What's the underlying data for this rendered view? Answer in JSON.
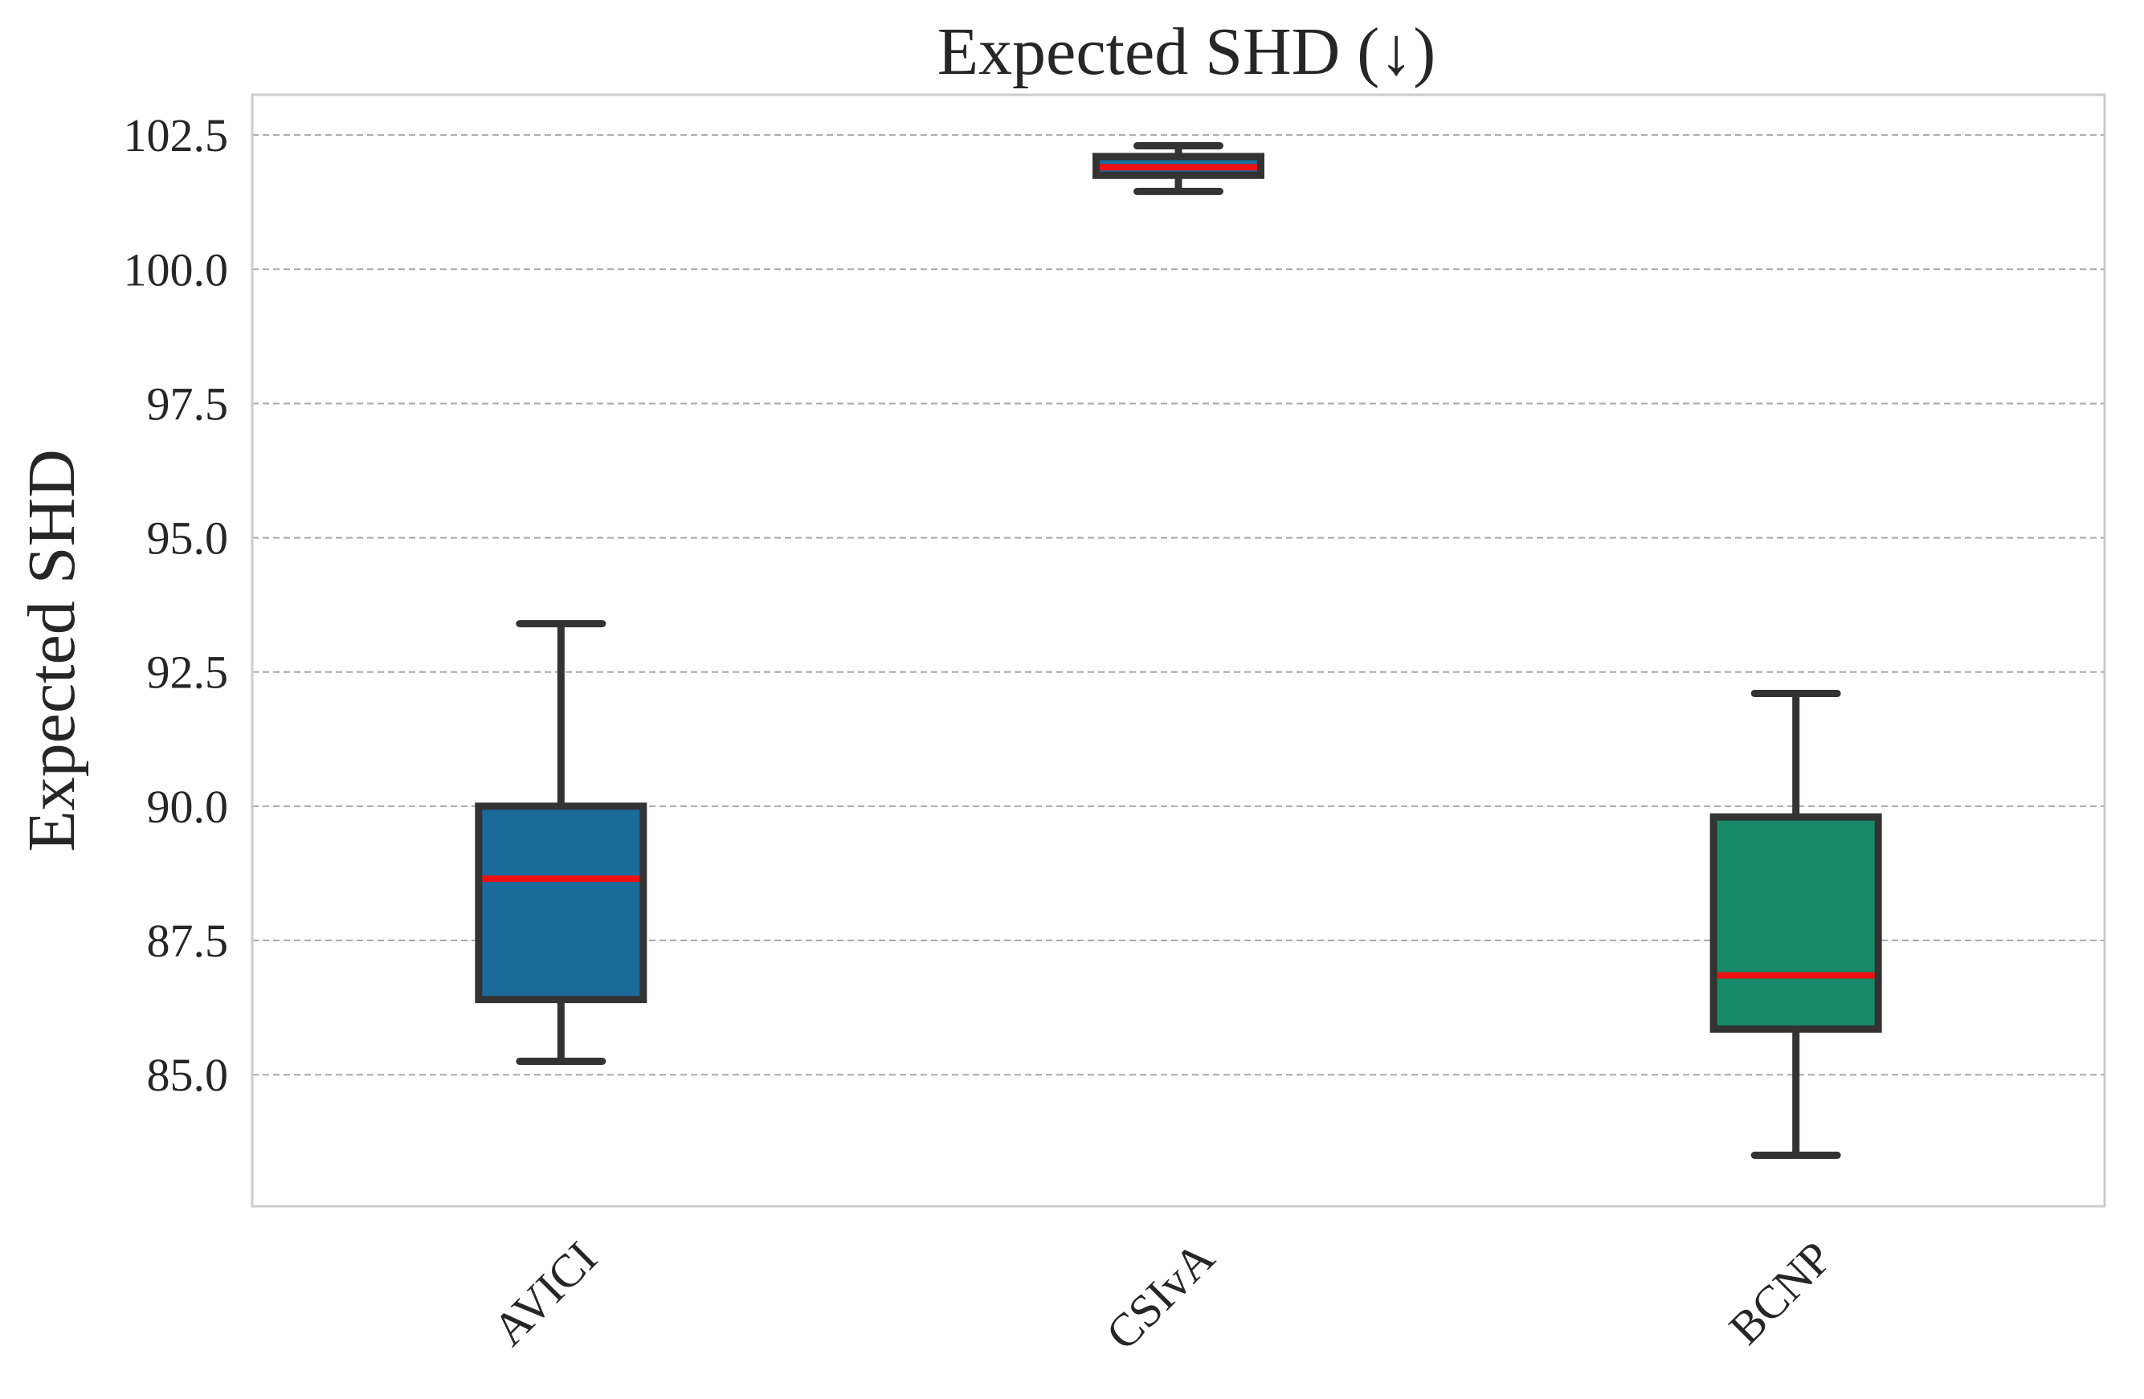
{
  "chart_data": {
    "type": "box",
    "title": "Expected SHD (↓)",
    "xlabel": "",
    "ylabel": "Expected SHD",
    "ylim": [
      82.55,
      103.25
    ],
    "yticks": [
      85.0,
      87.5,
      90.0,
      92.5,
      95.0,
      97.5,
      100.0,
      102.5
    ],
    "ytick_labels": [
      "85.0",
      "87.5",
      "90.0",
      "92.5",
      "95.0",
      "97.5",
      "100.0",
      "102.5"
    ],
    "grid": "horizontal, dashed",
    "legend": "none",
    "categories": [
      "AVICI",
      "CSIvA",
      "BCNP"
    ],
    "boxes": [
      {
        "category": "AVICI",
        "whisker_low": 85.25,
        "q1": 86.4,
        "median": 88.65,
        "q3": 90.0,
        "whisker_high": 93.4,
        "color": "#1a6b9a"
      },
      {
        "category": "CSIvA",
        "whisker_low": 101.45,
        "q1": 101.75,
        "median": 101.9,
        "q3": 102.1,
        "whisker_high": 102.3,
        "color": "#1a6b9a"
      },
      {
        "category": "BCNP",
        "whisker_low": 83.5,
        "q1": 85.85,
        "median": 86.85,
        "q3": 89.8,
        "whisker_high": 92.1,
        "color": "#178a6a"
      }
    ],
    "colors": {
      "median": "#ee1111",
      "box_edge": "#333333",
      "grid": "#a9a9a9",
      "frame": "#cccccc"
    }
  }
}
